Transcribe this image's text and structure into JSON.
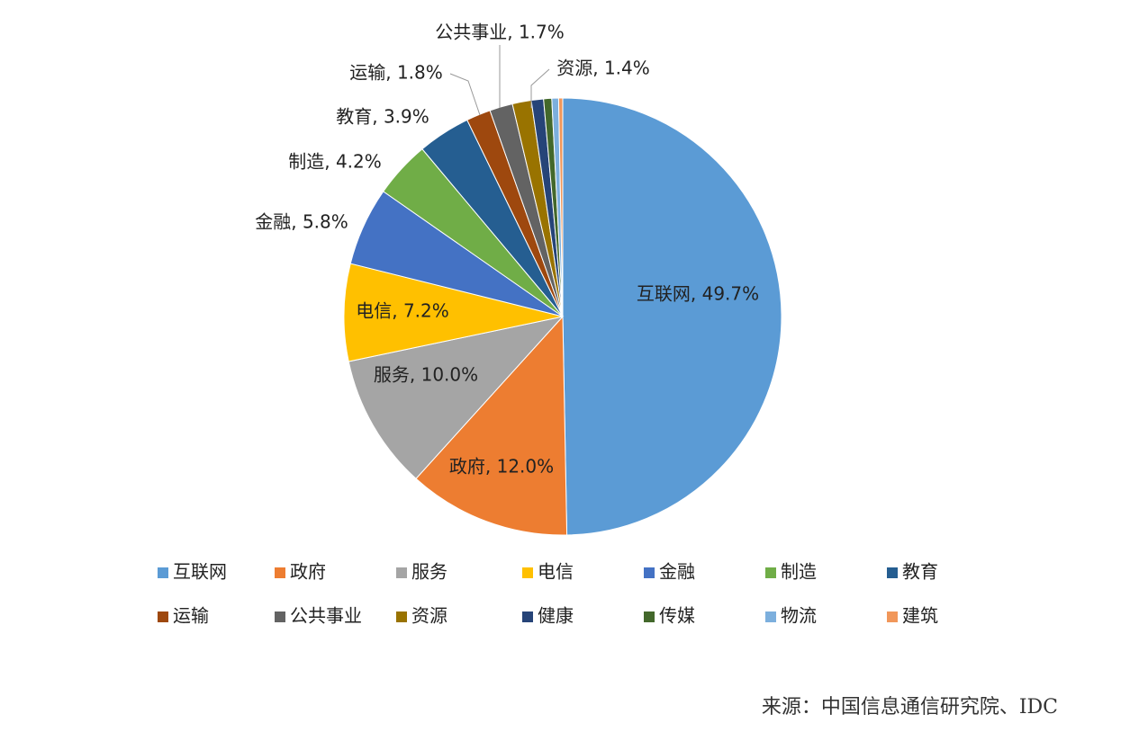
{
  "chart_data": {
    "type": "pie",
    "categories": [
      "互联网",
      "政府",
      "服务",
      "电信",
      "金融",
      "制造",
      "教育",
      "运输",
      "公共事业",
      "资源",
      "健康",
      "传媒",
      "物流",
      "建筑"
    ],
    "values": [
      49.7,
      12.0,
      10.0,
      7.2,
      5.8,
      4.2,
      3.9,
      1.8,
      1.7,
      1.4,
      0.9,
      0.6,
      0.5,
      0.3
    ],
    "value_labels": [
      "互联网, 49.7%",
      "政府, 12.0%",
      "服务, 10.0%",
      "电信, 7.2%",
      "金融, 5.8%",
      "制造, 4.2%",
      "教育, 3.9%",
      "运输, 1.8%",
      "公共事业, 1.7%",
      "资源, 1.4%",
      null,
      null,
      null,
      null
    ],
    "colors": [
      "#5b9bd5",
      "#ed7d31",
      "#a5a5a5",
      "#ffc000",
      "#4472c4",
      "#70ad47",
      "#255e91",
      "#9e480e",
      "#636363",
      "#997300",
      "#264478",
      "#43682b",
      "#7cafdd",
      "#f1975a"
    ],
    "source": "来源：中国信息通信研究院、IDC"
  }
}
